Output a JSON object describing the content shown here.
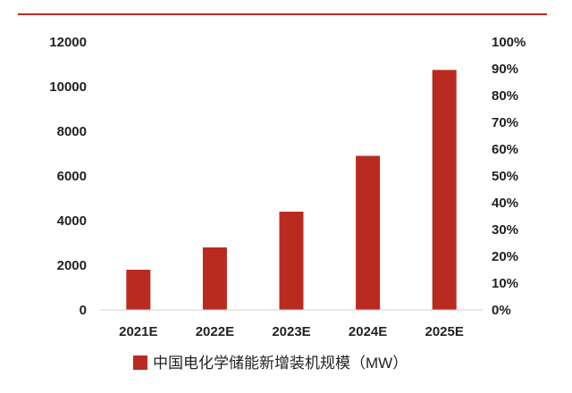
{
  "chart_data": {
    "type": "bar",
    "categories": [
      "2021E",
      "2022E",
      "2023E",
      "2024E",
      "2025E"
    ],
    "series": [
      {
        "name": "中国电化学储能新增装机规模（MW）",
        "values": [
          1800,
          2800,
          4400,
          6900,
          10750
        ],
        "color": "#b92b20"
      }
    ],
    "ylim": [
      0,
      12000
    ],
    "yticks": [
      0,
      2000,
      4000,
      6000,
      8000,
      10000,
      12000
    ],
    "y2lim": [
      0,
      100
    ],
    "y2ticks": [
      "0%",
      "10%",
      "20%",
      "30%",
      "40%",
      "50%",
      "60%",
      "70%",
      "80%",
      "90%",
      "100%"
    ],
    "grid": false,
    "legend_position": "bottom",
    "accent_line_color": "#b92b20"
  }
}
